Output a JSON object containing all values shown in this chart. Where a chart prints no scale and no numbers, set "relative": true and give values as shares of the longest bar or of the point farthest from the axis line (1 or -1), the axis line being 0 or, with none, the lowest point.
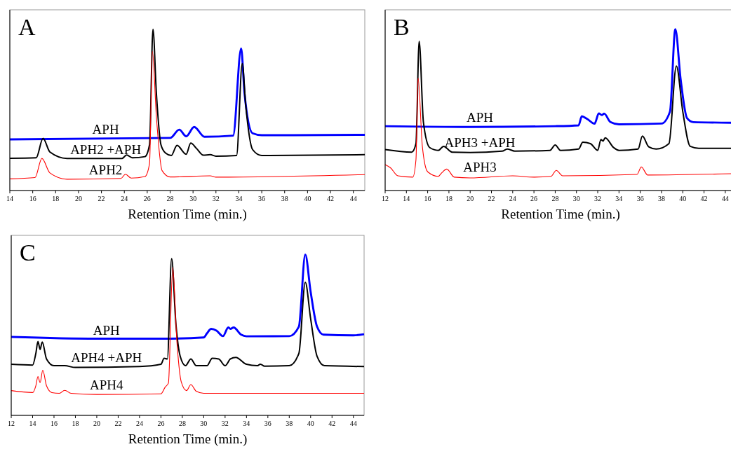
{
  "chart_data": [
    {
      "type": "line",
      "title": "A",
      "xlabel": "Retention Time (min.)",
      "relative": true,
      "xlim": [
        14,
        45
      ],
      "xticks": [
        14,
        16,
        18,
        20,
        22,
        24,
        26,
        28,
        30,
        32,
        34,
        36,
        38,
        40,
        42,
        44
      ],
      "grid": false,
      "series": [
        {
          "name": "APH",
          "color": "#0000ff",
          "x": [
            14,
            28,
            28.8,
            29.4,
            30.1,
            31,
            33.5,
            34.2,
            34.5,
            35.2,
            36,
            45
          ],
          "values": [
            0.317,
            0.326,
            0.377,
            0.336,
            0.394,
            0.333,
            0.34,
            0.88,
            0.6,
            0.355,
            0.343,
            0.345
          ]
        },
        {
          "name": "APH2 +APH",
          "color": "#000000",
          "x": [
            14,
            16.3,
            16.9,
            17.5,
            19,
            23.8,
            24.2,
            24.7,
            25.8,
            26.2,
            26.5,
            26.8,
            27.2,
            27.6,
            28.1,
            28.6,
            29.4,
            29.8,
            30.3,
            30.9,
            31.5,
            32,
            33.8,
            34.3,
            34.6,
            35.2,
            36,
            45
          ],
          "values": [
            0.2,
            0.203,
            0.323,
            0.239,
            0.199,
            0.199,
            0.22,
            0.203,
            0.21,
            0.283,
            1,
            0.601,
            0.283,
            0.232,
            0.217,
            0.28,
            0.225,
            0.294,
            0.261,
            0.219,
            0.222,
            0.213,
            0.217,
            0.787,
            0.529,
            0.254,
            0.217,
            0.222
          ]
        },
        {
          "name": "APH2",
          "color": "#ff0000",
          "x": [
            14,
            16.2,
            16.8,
            17.5,
            19,
            23.7,
            24.1,
            24.6,
            25.8,
            26.2,
            26.45,
            26.8,
            27.3,
            28,
            31.5,
            32,
            45
          ],
          "values": [
            0.072,
            0.08,
            0.199,
            0.109,
            0.07,
            0.075,
            0.101,
            0.077,
            0.087,
            0.167,
            0.862,
            0.457,
            0.123,
            0.084,
            0.091,
            0.083,
            0.099
          ]
        }
      ]
    },
    {
      "type": "line",
      "title": "B",
      "xlabel": "Retention Time (min.)",
      "relative": true,
      "xlim": [
        12,
        45
      ],
      "xticks": [
        12,
        14,
        16,
        18,
        20,
        22,
        24,
        26,
        28,
        30,
        32,
        34,
        36,
        38,
        40,
        42,
        44
      ],
      "grid": false,
      "series": [
        {
          "name": "APH",
          "color": "#0000ff",
          "x": [
            12,
            20,
            28,
            30.2,
            30.5,
            31,
            31.7,
            32.1,
            32.4,
            32.6,
            33.2,
            34,
            38,
            38.8,
            39.3,
            39.8,
            40.4,
            41,
            45
          ],
          "values": [
            0.399,
            0.394,
            0.399,
            0.404,
            0.46,
            0.444,
            0.414,
            0.478,
            0.468,
            0.477,
            0.424,
            0.41,
            0.415,
            0.49,
            1,
            0.689,
            0.449,
            0.424,
            0.42
          ]
        },
        {
          "name": "APH3 +APH",
          "color": "#000000",
          "x": [
            12,
            14.5,
            14.9,
            15.2,
            15.6,
            16.2,
            17,
            17.5,
            18.3,
            20,
            23,
            23.5,
            24.2,
            27.5,
            28,
            28.5,
            30.2,
            30.6,
            31.3,
            32,
            32.3,
            32.5,
            32.7,
            33.5,
            34,
            35.8,
            36.2,
            36.8,
            37.5,
            38.7,
            39.4,
            40,
            40.7,
            41.5,
            45
          ],
          "values": [
            0.254,
            0.238,
            0.291,
            0.925,
            0.424,
            0.266,
            0.249,
            0.274,
            0.238,
            0.236,
            0.244,
            0.257,
            0.244,
            0.249,
            0.282,
            0.249,
            0.257,
            0.299,
            0.291,
            0.249,
            0.316,
            0.307,
            0.327,
            0.266,
            0.249,
            0.257,
            0.337,
            0.271,
            0.257,
            0.291,
            0.772,
            0.49,
            0.274,
            0.262,
            0.261
          ]
        },
        {
          "name": "APH3",
          "color": "#ff0000",
          "x": [
            12,
            12.5,
            13.2,
            14.6,
            14.9,
            15.1,
            15.5,
            16,
            17,
            17.3,
            17.8,
            18.5,
            20,
            24,
            26,
            27.6,
            28.1,
            28.7,
            35.7,
            36.1,
            36.7,
            45
          ],
          "values": [
            0.161,
            0.141,
            0.091,
            0.083,
            0.191,
            0.698,
            0.274,
            0.116,
            0.088,
            0.108,
            0.133,
            0.083,
            0.078,
            0.091,
            0.083,
            0.088,
            0.125,
            0.091,
            0.1,
            0.146,
            0.096,
            0.105
          ]
        }
      ]
    },
    {
      "type": "line",
      "title": "C",
      "xlabel": "Retention Time (min.)",
      "relative": true,
      "xlim": [
        12,
        45
      ],
      "xticks": [
        12,
        14,
        16,
        18,
        20,
        22,
        24,
        26,
        28,
        30,
        32,
        34,
        36,
        38,
        40,
        42,
        44
      ],
      "grid": false,
      "series": [
        {
          "name": "APH",
          "color": "#0000ff",
          "x": [
            12,
            20,
            26,
            30,
            30.3,
            30.7,
            31.2,
            31.8,
            32.3,
            32.5,
            32.8,
            33.5,
            34,
            38,
            38.9,
            39.5,
            40,
            40.6,
            41.2,
            44,
            45
          ],
          "values": [
            0.488,
            0.477,
            0.477,
            0.485,
            0.51,
            0.538,
            0.527,
            0.493,
            0.547,
            0.538,
            0.547,
            0.502,
            0.492,
            0.493,
            0.552,
            1,
            0.769,
            0.552,
            0.502,
            0.498,
            0.505
          ]
        },
        {
          "name": "APH4 +APH",
          "color": "#000000",
          "x": [
            12,
            14,
            14.3,
            14.5,
            14.7,
            14.9,
            15.3,
            16,
            17,
            18,
            24,
            26,
            26.3,
            26.6,
            27,
            27.4,
            27.8,
            28.3,
            28.8,
            29.3,
            30.3,
            30.8,
            31.4,
            32,
            32.5,
            33,
            34,
            35,
            35.3,
            35.7,
            38,
            38.9,
            39.5,
            40,
            40.6,
            41.3,
            45
          ],
          "values": [
            0.318,
            0.313,
            0.385,
            0.46,
            0.41,
            0.457,
            0.351,
            0.309,
            0.309,
            0.298,
            0.304,
            0.318,
            0.355,
            0.351,
            0.975,
            0.569,
            0.368,
            0.309,
            0.351,
            0.309,
            0.309,
            0.355,
            0.351,
            0.309,
            0.351,
            0.361,
            0.318,
            0.309,
            0.318,
            0.306,
            0.309,
            0.385,
            0.828,
            0.602,
            0.368,
            0.309,
            0.304
          ]
        },
        {
          "name": "APH4",
          "color": "#ff0000",
          "x": [
            12,
            14,
            14.3,
            14.5,
            14.7,
            14.95,
            15.3,
            15.8,
            16.5,
            17,
            17.6,
            20,
            26,
            26.4,
            26.7,
            27.1,
            27.5,
            27.9,
            28.4,
            28.8,
            29.3,
            30,
            45
          ],
          "values": [
            0.154,
            0.142,
            0.184,
            0.242,
            0.204,
            0.281,
            0.184,
            0.142,
            0.137,
            0.156,
            0.137,
            0.13,
            0.134,
            0.176,
            0.201,
            0.92,
            0.452,
            0.209,
            0.154,
            0.192,
            0.15,
            0.137,
            0.137
          ]
        }
      ]
    }
  ]
}
